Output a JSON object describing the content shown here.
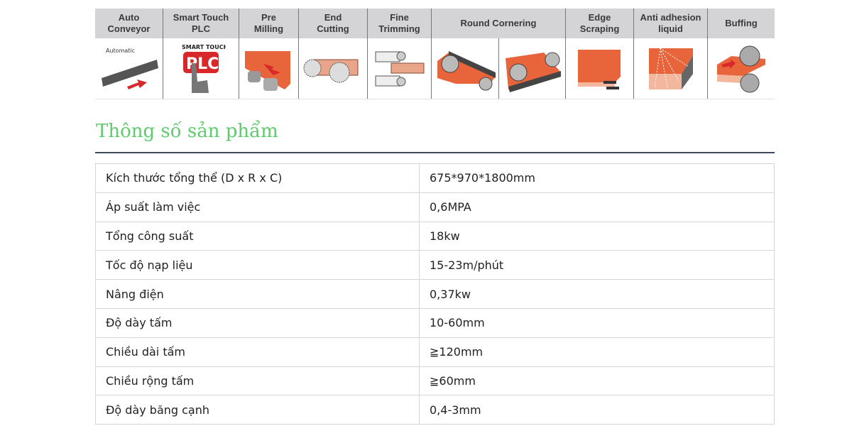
{
  "features": [
    {
      "label": "Auto\nConveyor",
      "icon": "conveyor-icon",
      "image_text": "Automatic"
    },
    {
      "label": "Smart Touch\nPLC",
      "icon": "plc-touch-icon",
      "image_text": "SMART TOUCH PLC"
    },
    {
      "label": "Pre\nMilling",
      "icon": "pre-milling-icon"
    },
    {
      "label": "End\nCutting",
      "icon": "end-cutting-icon"
    },
    {
      "label": "Fine\nTrimming",
      "icon": "fine-trimming-icon"
    },
    {
      "label": "Round Cornering",
      "icon": "round-cornering-icon"
    },
    {
      "label": "Edge\nScraping",
      "icon": "edge-scraping-icon"
    },
    {
      "label": "Anti adhesion\nliquid",
      "icon": "anti-adhesion-icon"
    },
    {
      "label": "Buffing",
      "icon": "buffing-icon"
    }
  ],
  "section_title": "Thông số sản phẩm",
  "specs": [
    {
      "name": "Kích thước tổng thể (D x R x C)",
      "value": "675*970*1800mm"
    },
    {
      "name": "Áp suất làm việc",
      "value": "0,6MPA"
    },
    {
      "name": "Tổng công suất",
      "value": "18kw"
    },
    {
      "name": "Tốc độ nạp liệu",
      "value": "15-23m/phút"
    },
    {
      "name": "Nâng điện",
      "value": "0,37kw"
    },
    {
      "name": "Độ dày tấm",
      "value": "10-60mm"
    },
    {
      "name": "Chiều dài tấm",
      "value": "≧120mm"
    },
    {
      "name": "Chiều rộng tấm",
      "value": "≧60mm"
    },
    {
      "name": "Độ dày băng cạnh",
      "value": "0,4-3mm"
    }
  ],
  "colors": {
    "title": "#5fca6e",
    "panel": "#e8643a",
    "header_bg": "#d4d4d6"
  }
}
